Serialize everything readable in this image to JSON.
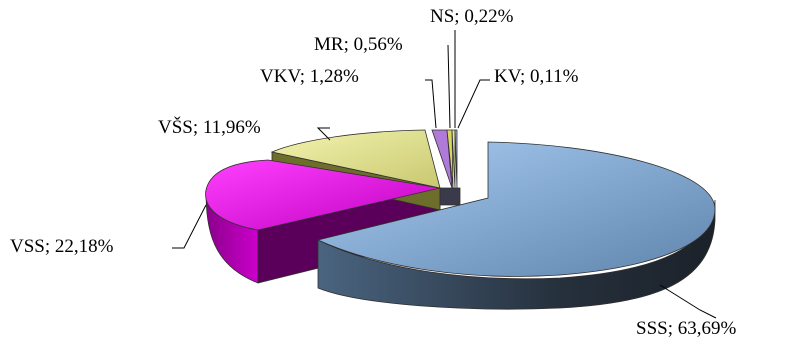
{
  "chart_data": {
    "type": "pie",
    "style": "3d-exploded",
    "title": "",
    "slices": [
      {
        "label": "SSS",
        "value": 63.69,
        "display": "SSS; 63,69%",
        "color": "#8fb8e6",
        "side": "#2c3e50"
      },
      {
        "label": "KV",
        "value": 0.11,
        "display": "KV; 0,11%",
        "color": "#a3b8d0",
        "side": "#34404d"
      },
      {
        "label": "NS",
        "value": 0.22,
        "display": "NS; 0,22%",
        "color": "#e6e6a0",
        "side": "#5a5a30"
      },
      {
        "label": "MR",
        "value": 0.56,
        "display": "MR; 0,56%",
        "color": "#d8d860",
        "side": "#5f5f24"
      },
      {
        "label": "VKV",
        "value": 1.28,
        "display": "VKV; 1,28%",
        "color": "#b07ad8",
        "side": "#4a2f5e"
      },
      {
        "label": "VŠS",
        "value": 11.96,
        "display": "VŠS; 11,96%",
        "color": "#e8e890",
        "side": "#6a6a30"
      },
      {
        "label": "VSS",
        "value": 22.18,
        "display": "VSS; 22,18%",
        "color": "#e000e0",
        "side": "#800080"
      }
    ]
  }
}
